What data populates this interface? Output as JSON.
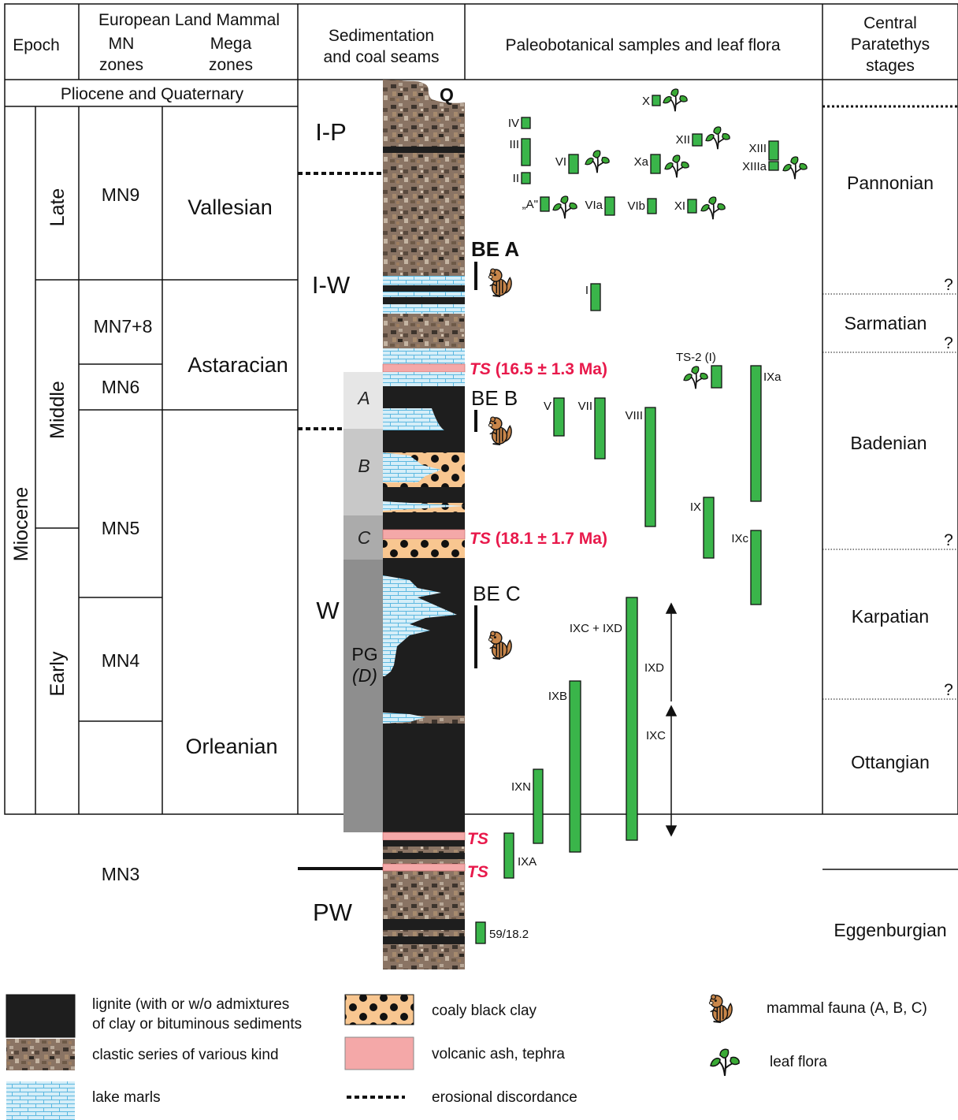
{
  "headers": {
    "epoch": "Epoch",
    "land_mammal_line1": "European Land Mammal",
    "mn_line1": "MN",
    "mn_line2": "zones",
    "mega_line1": "Mega",
    "mega_line2": "zones",
    "sed_line1": "Sedimentation",
    "sed_line2": "and coal seams",
    "paleo": "Paleobotanical samples and leaf flora",
    "cp_line1": "Central",
    "cp_line2": "Paratethys",
    "cp_line3": "stages"
  },
  "pliocene_row": "Pliocene and Quaternary",
  "epochs": {
    "miocene": "Miocene",
    "late": "Late",
    "middle": "Middle",
    "early": "Early"
  },
  "mn_zones": [
    "MN9",
    "MN7+8",
    "MN6",
    "MN5",
    "MN4",
    "MN3"
  ],
  "mega_zones": [
    "Vallesian",
    "Astaracian",
    "Orleanian"
  ],
  "sed_units": [
    "I-P",
    "I-W",
    "W",
    "PW"
  ],
  "coal_seams": {
    "a": "A",
    "b": "B",
    "c": "C",
    "pg_line1": "PG",
    "pg_line2": "(D)"
  },
  "column_top_label": "Q",
  "mammal_sites": [
    "BE A",
    "BE B",
    "BE C"
  ],
  "ts_short": "TS",
  "ts_ages": [
    "(16.5 ± 1.3 Ma)",
    "(18.1 ± 1.7 Ma)"
  ],
  "samples": {
    "X": "X",
    "IV": "IV",
    "III": "III",
    "II": "II",
    "VI": "VI",
    "Xa": "Xa",
    "XII": "XII",
    "XIII": "XIII",
    "XIIIa": "XIIIa",
    "A": "„A\"",
    "VIa": "VIa",
    "VIb": "VIb",
    "XI": "XI",
    "I": "I",
    "TS2": "TS-2 (I)",
    "IXa": "IXa",
    "V": "V",
    "VII": "VII",
    "VIII": "VIII",
    "IX": "IX",
    "IXc": "IXc",
    "IXCD": "IXC + IXD",
    "IXD": "IXD",
    "IXB": "IXB",
    "IXC": "IXC",
    "IXN": "IXN",
    "IXA": "IXA",
    "s59": "59/18.2"
  },
  "stages": [
    "Pannonian",
    "Sarmatian",
    "Badenian",
    "Karpatian",
    "Ottangian",
    "Eggenburgian"
  ],
  "stage_question": "?",
  "legend": {
    "lignite_line1": "lignite (with or w/o admixtures",
    "lignite_line2": "of clay or bituminous sediments",
    "clastic": "clastic series of various kind",
    "marls": "lake marls",
    "coaly": "coaly black clay",
    "ash": "volcanic ash, tephra",
    "erosion": "erosional discordance",
    "mammal": "mammal fauna (A, B, C)",
    "leaf": "leaf flora"
  },
  "colors": {
    "lignite": "#1e1e1e",
    "clastic": "#8a7464",
    "marl": "#d6eef8",
    "marl_line": "#5cb8e0",
    "coaly": "#f8c690",
    "ash": "#f4a8a8",
    "sample_green": "#3ab54a",
    "ts_red": "#e8194b",
    "seam_a": "#e6e6e6",
    "seam_b": "#c8c8c8",
    "seam_c": "#ababab",
    "seam_pg": "#8e8e8e",
    "leaf": "#3aaa35",
    "mammal": "#c8864a"
  }
}
